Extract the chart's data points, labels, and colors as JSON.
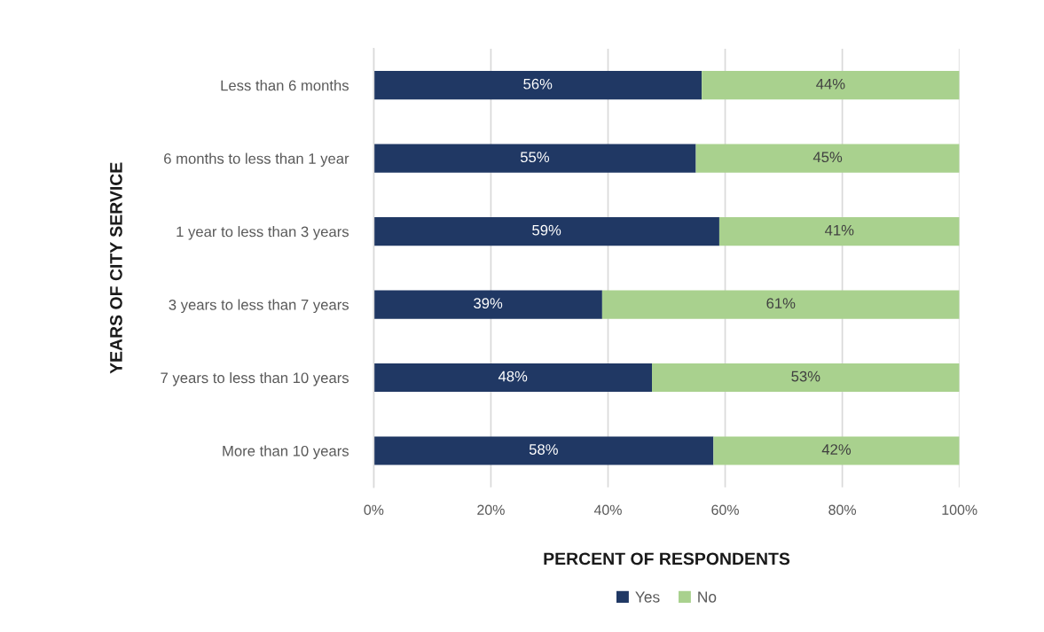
{
  "chart_data": {
    "type": "bar",
    "orientation": "horizontal",
    "stacked": true,
    "xlabel": "PERCENT OF RESPONDENTS",
    "ylabel": "YEARS OF CITY SERVICE",
    "categories": [
      "Less than 6 months",
      "6 months to less than 1 year",
      "1 year to less than 3 years",
      "3 years to less than 7 years",
      "7 years to less than 10 years",
      "More than 10 years"
    ],
    "series": [
      {
        "name": "Yes",
        "color": "#203864",
        "values": [
          56,
          55,
          59,
          39,
          47.5,
          58
        ],
        "value_labels": [
          "56%",
          "55%",
          "59%",
          "39%",
          "48%",
          "58%"
        ]
      },
      {
        "name": "No",
        "color": "#a9d18e",
        "values": [
          44,
          45,
          41,
          61,
          52.5,
          42
        ],
        "value_labels": [
          "44%",
          "45%",
          "41%",
          "61%",
          "53%",
          "42%"
        ]
      }
    ],
    "xlim": [
      0,
      100
    ],
    "xticks": [
      {
        "value": 0,
        "label": "0%"
      },
      {
        "value": 20,
        "label": "20%"
      },
      {
        "value": 40,
        "label": "40%"
      },
      {
        "value": 60,
        "label": "60%"
      },
      {
        "value": 80,
        "label": "80%"
      },
      {
        "value": 100,
        "label": "100%"
      }
    ],
    "grid": "x",
    "legend": "bottom"
  }
}
